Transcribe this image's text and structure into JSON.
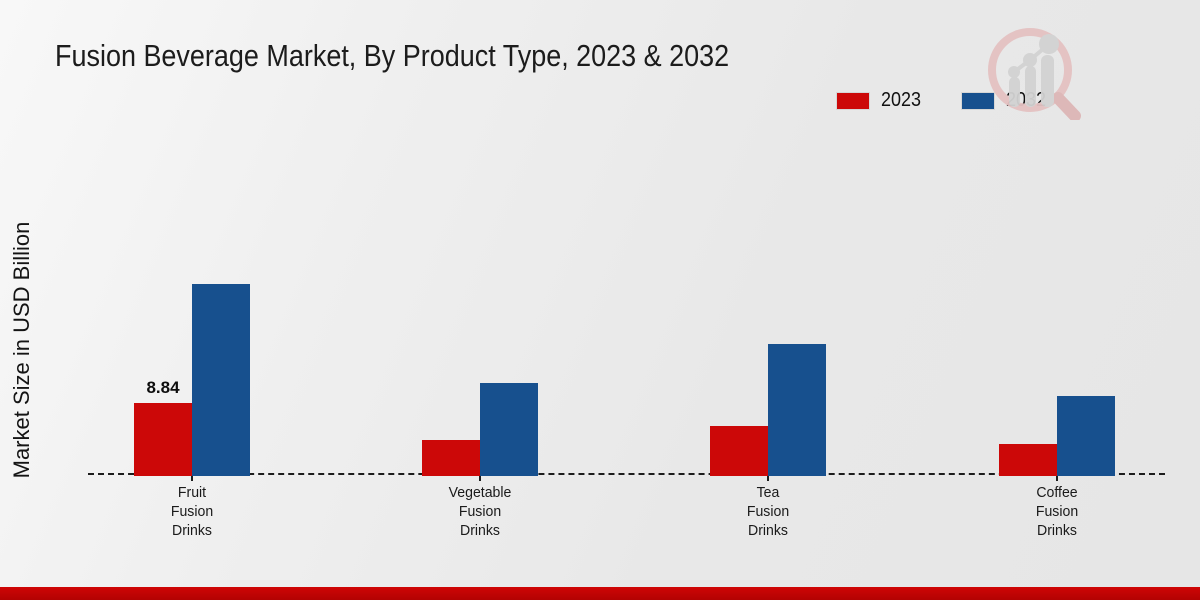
{
  "header": {
    "title": "Fusion Beverage Market, By Product Type, 2023 & 2032"
  },
  "branding": {
    "watermark": "magnifier-bar-chart-logo"
  },
  "colors": {
    "series_2023": "#cc0808",
    "series_2032": "#17508e",
    "footer_bar": "#c00404",
    "background": "#ebebeb"
  },
  "chart_data": {
    "type": "bar",
    "title": "Fusion Beverage Market, By Product Type, 2023 & 2032",
    "xlabel": "",
    "ylabel": "Market Size in USD Billion",
    "categories": [
      "Fruit\nFusion\nDrinks",
      "Vegetable\nFusion\nDrinks",
      "Tea\nFusion\nDrinks",
      "Coffee\nFusion\nDrinks"
    ],
    "series": [
      {
        "name": "2023",
        "color": "#cc0808",
        "values": [
          8.84,
          4.36,
          6.05,
          3.88
        ]
      },
      {
        "name": "2032",
        "color": "#17508e",
        "values": [
          23.25,
          11.26,
          15.98,
          9.69
        ]
      }
    ],
    "data_labels": [
      "8.84",
      null,
      null,
      null
    ],
    "ylim": [
      0,
      25
    ],
    "grid": false,
    "axis_baseline_style": "dashed",
    "legend_position": "top-right"
  }
}
